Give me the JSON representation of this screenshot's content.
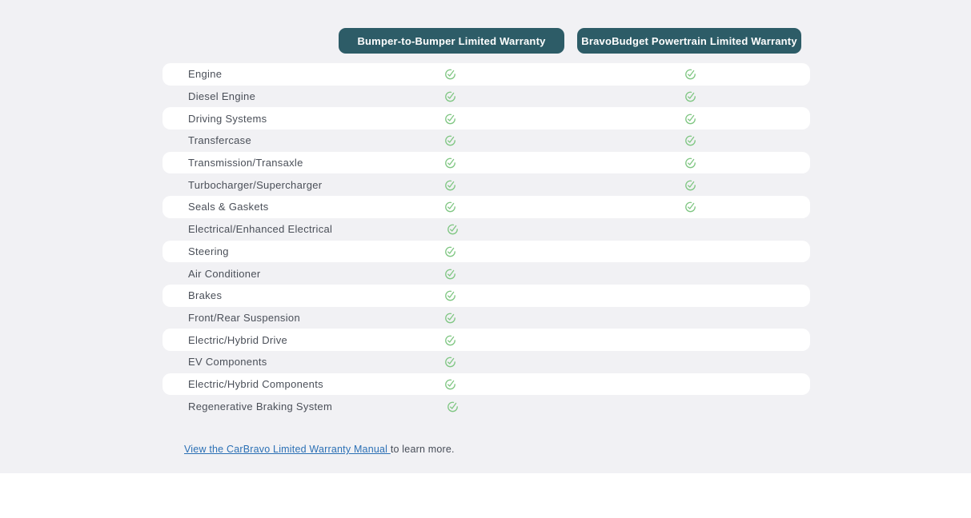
{
  "table": {
    "columns": [
      {
        "label": "Bumper-to-Bumper Limited Warranty"
      },
      {
        "label": "BravoBudget Powertrain Limited Warranty"
      }
    ],
    "rows": [
      {
        "label": "Engine",
        "bumper_to_bumper": true,
        "powertrain": true
      },
      {
        "label": "Diesel Engine",
        "bumper_to_bumper": true,
        "powertrain": true
      },
      {
        "label": "Driving Systems",
        "bumper_to_bumper": true,
        "powertrain": true
      },
      {
        "label": "Transfercase",
        "bumper_to_bumper": true,
        "powertrain": true
      },
      {
        "label": "Transmission/Transaxle",
        "bumper_to_bumper": true,
        "powertrain": true
      },
      {
        "label": "Turbocharger/Supercharger",
        "bumper_to_bumper": true,
        "powertrain": true
      },
      {
        "label": "Seals & Gaskets",
        "bumper_to_bumper": true,
        "powertrain": true
      },
      {
        "label": "Electrical/Enhanced Electrical",
        "bumper_to_bumper": true,
        "powertrain": false
      },
      {
        "label": "Steering",
        "bumper_to_bumper": true,
        "powertrain": false
      },
      {
        "label": "Air Conditioner",
        "bumper_to_bumper": true,
        "powertrain": false
      },
      {
        "label": "Brakes",
        "bumper_to_bumper": true,
        "powertrain": false
      },
      {
        "label": "Front/Rear Suspension",
        "bumper_to_bumper": true,
        "powertrain": false
      },
      {
        "label": "Electric/Hybrid Drive",
        "bumper_to_bumper": true,
        "powertrain": false
      },
      {
        "label": "EV Components",
        "bumper_to_bumper": true,
        "powertrain": false
      },
      {
        "label": "Electric/Hybrid Components",
        "bumper_to_bumper": true,
        "powertrain": false
      },
      {
        "label": "Regenerative Braking System",
        "bumper_to_bumper": true,
        "powertrain": false
      }
    ]
  },
  "footer": {
    "link_text": "View the CarBravo Limited Warranty Manual ",
    "suffix": "to learn more."
  },
  "icons": {
    "check": "check-circle-icon"
  },
  "colors": {
    "header_button": "#2d5c67",
    "check_green": "#7fc682",
    "link_blue": "#2b70b5",
    "label_text": "#4a4f58",
    "section_background": "#f1f1f4",
    "row_white": "#ffffff"
  }
}
